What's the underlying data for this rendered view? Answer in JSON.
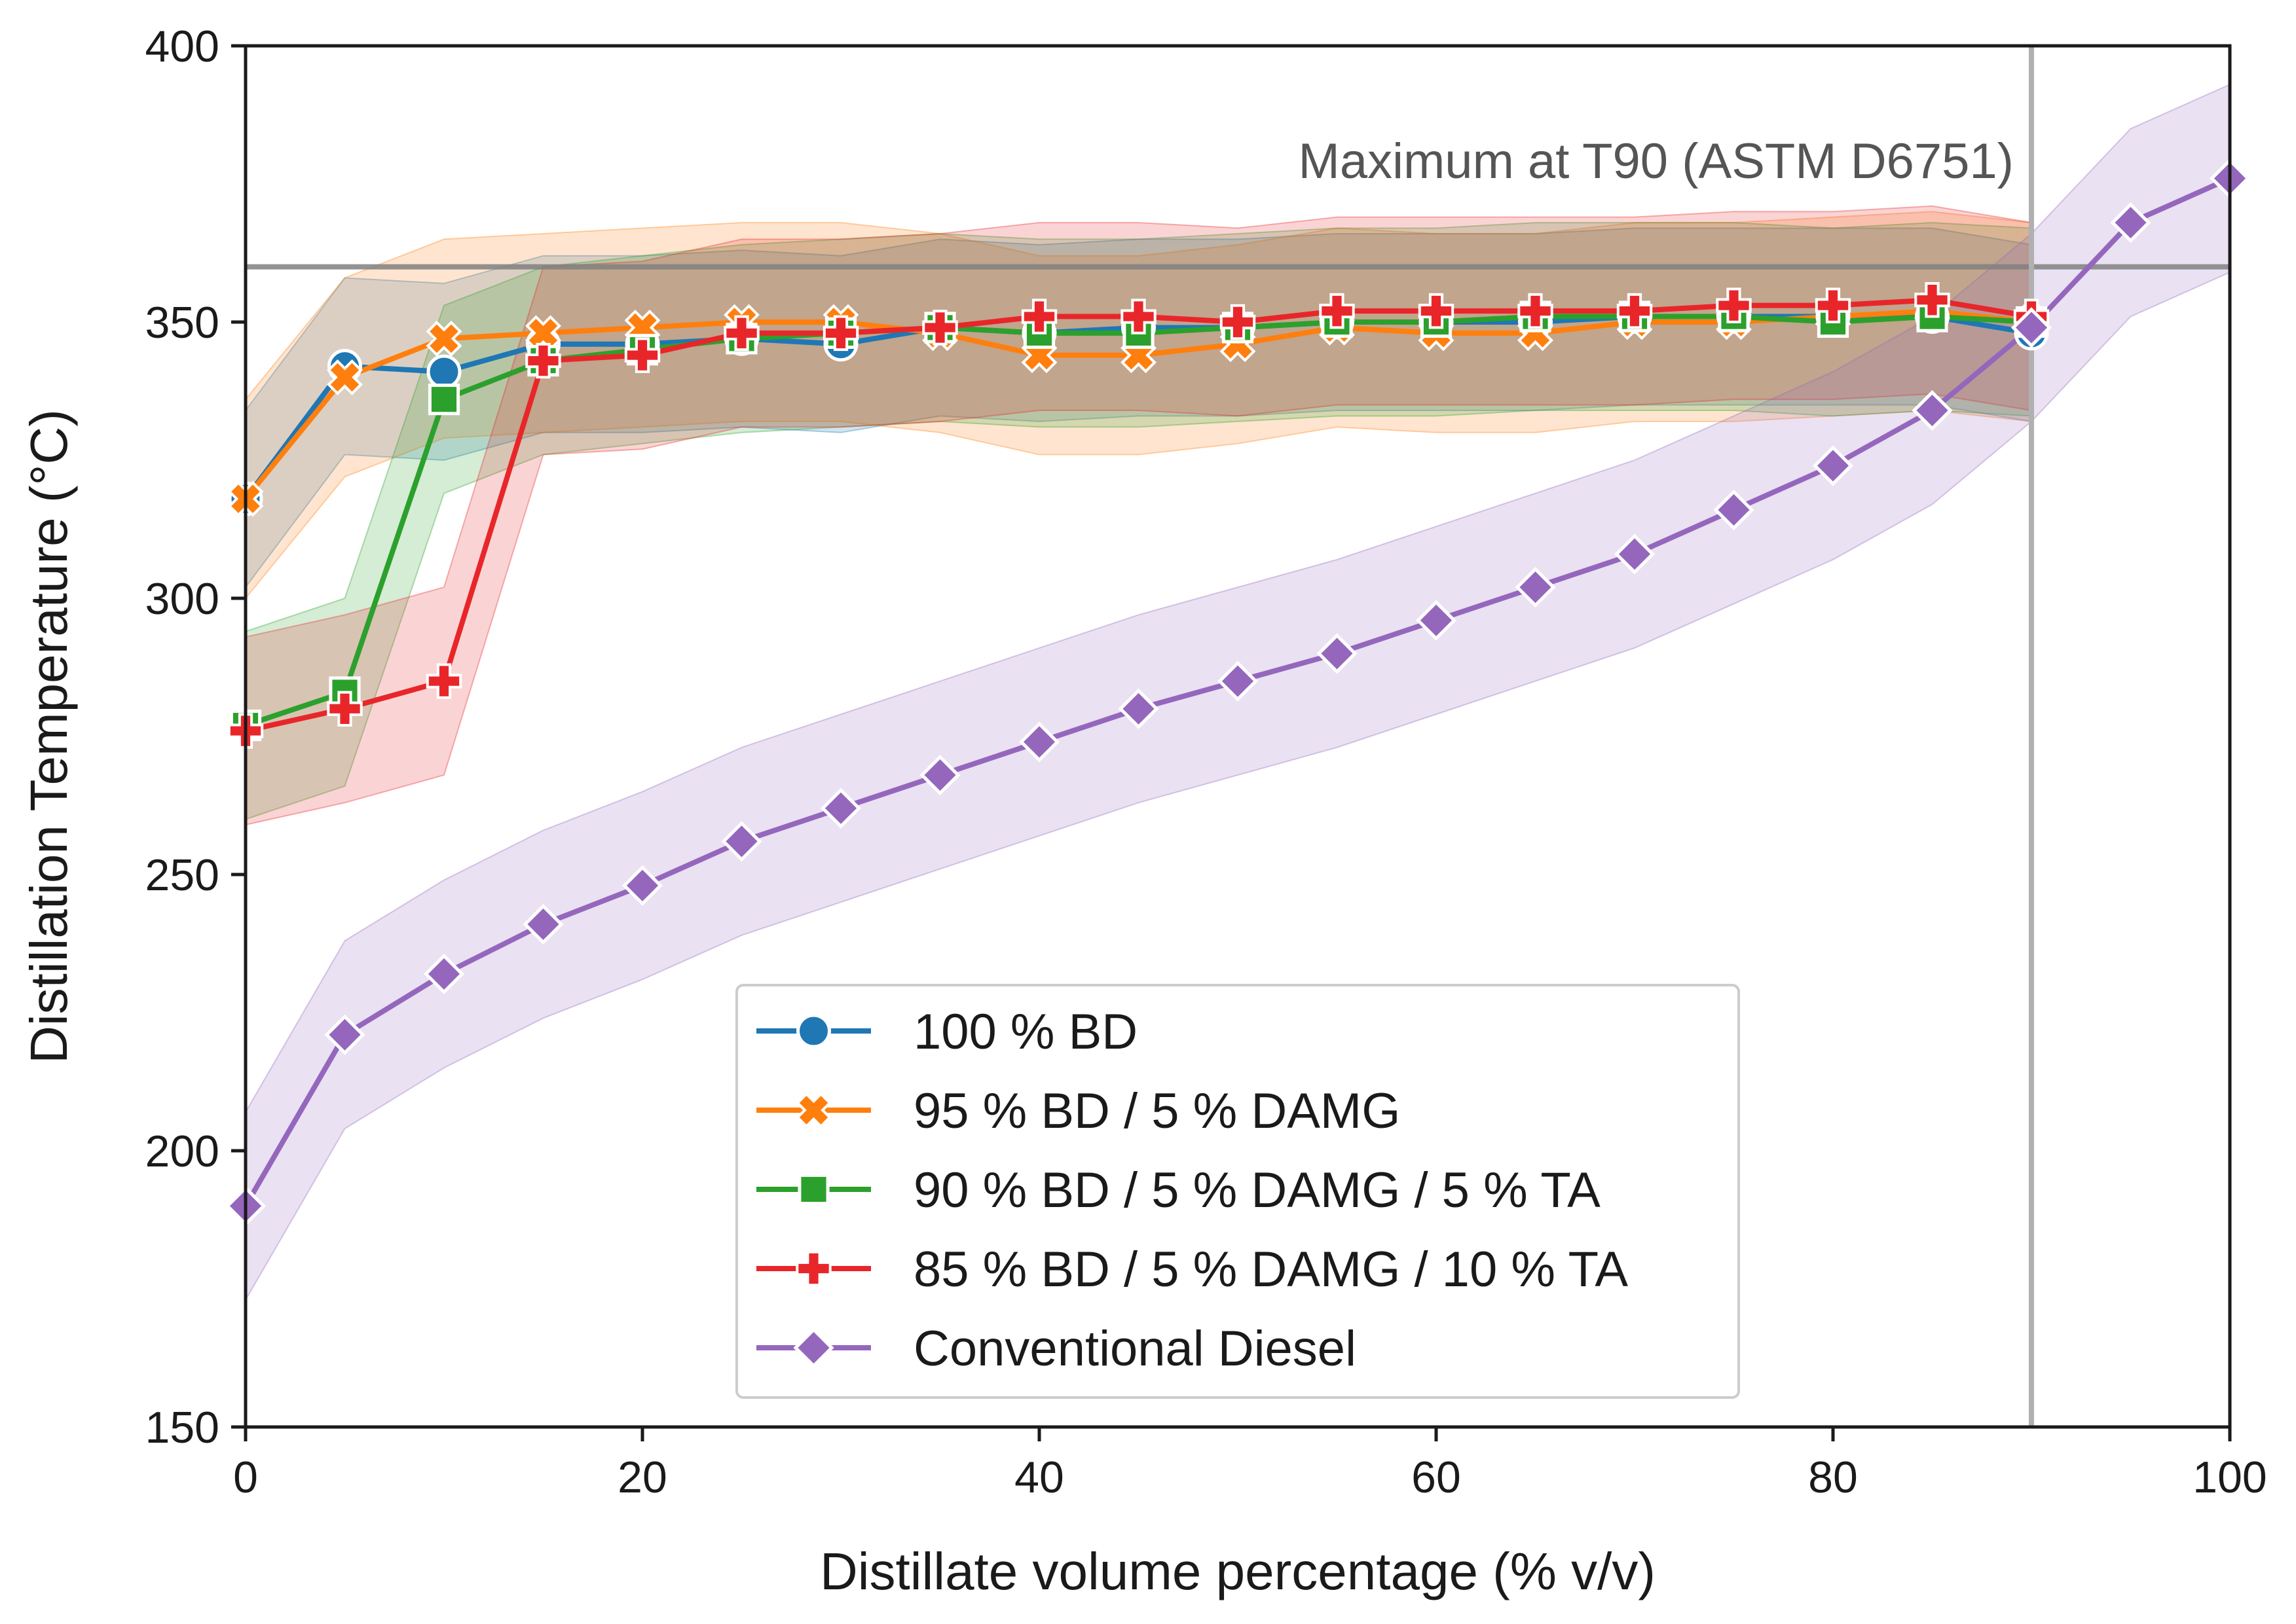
{
  "chart_data": {
    "type": "line",
    "title": "",
    "xlabel": "Distillate volume percentage (% v/v)",
    "ylabel": "Distillation Temperature (°C)",
    "xlim": [
      0,
      100
    ],
    "ylim": [
      150,
      400
    ],
    "xticks": [
      0,
      20,
      40,
      60,
      80,
      100
    ],
    "yticks": [
      150,
      200,
      250,
      300,
      350,
      400
    ],
    "grid": false,
    "legend_position": "lower-center",
    "annotations": {
      "hline": {
        "y": 360,
        "label": "Maximum at T90 (ASTM D6751)"
      },
      "vline": {
        "x": 90
      }
    },
    "series": [
      {
        "name": "100 % BD",
        "color": "#1f77b4",
        "marker": "circle",
        "x": [
          0,
          5,
          10,
          15,
          20,
          25,
          30,
          35,
          40,
          45,
          50,
          55,
          60,
          65,
          70,
          75,
          80,
          85,
          90
        ],
        "y": [
          318,
          342,
          341,
          346,
          346,
          347,
          346,
          349,
          348,
          349,
          349,
          350,
          350,
          350,
          351,
          351,
          351,
          351,
          348
        ],
        "band": 16
      },
      {
        "name": "95 % BD / 5 % DAMG",
        "color": "#ff7f0e",
        "marker": "x",
        "x": [
          0,
          5,
          10,
          15,
          20,
          25,
          30,
          35,
          40,
          45,
          50,
          55,
          60,
          65,
          70,
          75,
          80,
          85,
          90
        ],
        "y": [
          318,
          340,
          347,
          348,
          349,
          350,
          350,
          348,
          344,
          344,
          346,
          349,
          348,
          348,
          350,
          350,
          351,
          352,
          350
        ],
        "band": 18
      },
      {
        "name": "90 % BD / 5 % DAMG / 5 % TA",
        "color": "#2ca02c",
        "marker": "square",
        "x": [
          0,
          5,
          10,
          15,
          20,
          25,
          30,
          35,
          40,
          45,
          50,
          55,
          60,
          65,
          70,
          75,
          80,
          85,
          90
        ],
        "y": [
          277,
          283,
          336,
          343,
          345,
          347,
          348,
          349,
          348,
          348,
          349,
          350,
          350,
          351,
          351,
          351,
          350,
          351,
          350
        ],
        "band": 17
      },
      {
        "name": "85 % BD / 5 % DAMG / 10 % TA",
        "color": "#e8262a",
        "marker": "plus",
        "x": [
          0,
          5,
          10,
          15,
          20,
          25,
          30,
          35,
          40,
          45,
          50,
          55,
          60,
          65,
          70,
          75,
          80,
          85,
          90
        ],
        "y": [
          276,
          280,
          285,
          343,
          344,
          348,
          348,
          349,
          351,
          351,
          350,
          352,
          352,
          352,
          352,
          353,
          353,
          354,
          351
        ],
        "band": 17
      },
      {
        "name": "Conventional Diesel",
        "color": "#9467bd",
        "marker": "diamond",
        "x": [
          0,
          5,
          10,
          15,
          20,
          25,
          30,
          35,
          40,
          45,
          50,
          55,
          60,
          65,
          70,
          75,
          80,
          85,
          90,
          95,
          100
        ],
        "y": [
          190,
          221,
          232,
          241,
          248,
          256,
          262,
          268,
          274,
          280,
          285,
          290,
          296,
          302,
          308,
          316,
          324,
          334,
          349,
          368,
          376
        ],
        "band": 17
      }
    ]
  }
}
